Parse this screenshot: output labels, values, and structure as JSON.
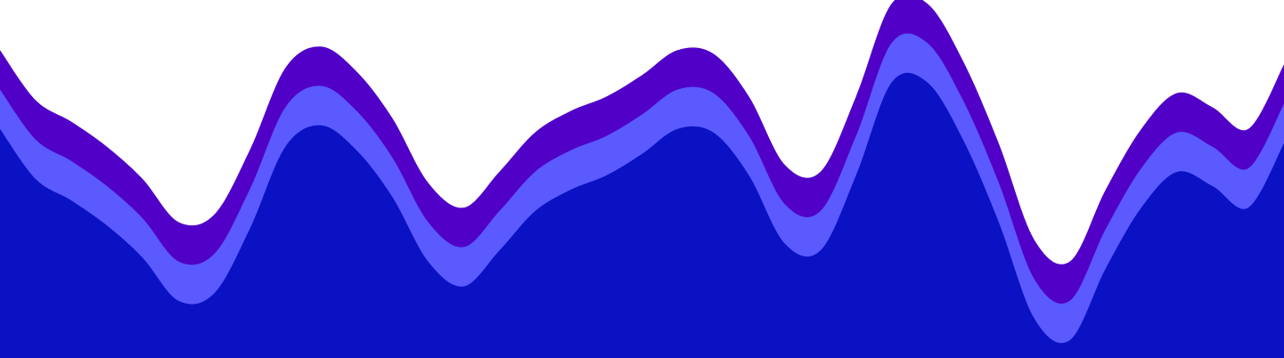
{
  "chart_data": {
    "type": "area",
    "stacked": true,
    "title": "",
    "xlabel": "",
    "ylabel": "",
    "grid": false,
    "legend": "none",
    "ylim": [
      0,
      100
    ],
    "x": [
      0,
      1,
      2,
      3,
      4,
      5,
      6,
      7,
      8,
      9,
      10,
      11,
      12,
      13,
      14,
      15,
      16,
      17,
      18,
      19,
      20,
      21,
      22,
      23,
      24,
      25,
      26,
      27,
      28,
      29,
      30,
      31,
      32,
      33,
      34,
      35,
      36
    ],
    "series": [
      {
        "color": "#0a12c4",
        "values": [
          64,
          50,
          44,
          37,
          28,
          16,
          18,
          36,
          59,
          65,
          58,
          45,
          27,
          20,
          30,
          41,
          47,
          51,
          57,
          64,
          63,
          51,
          32,
          30,
          51,
          77,
          77,
          61,
          38,
          11,
          5,
          25,
          42,
          52,
          48,
          42,
          60
        ]
      },
      {
        "color": "#5a5aff",
        "values": [
          11,
          11,
          11,
          11,
          11,
          11,
          11,
          11,
          11,
          11,
          11,
          11,
          11,
          11,
          11,
          11,
          11,
          11,
          11,
          11,
          11,
          11,
          11,
          11,
          11,
          11,
          11,
          11,
          11,
          11,
          11,
          11,
          11,
          11,
          11,
          11,
          11
        ]
      },
      {
        "color": "#5100c8",
        "values": [
          11,
          11,
          11,
          11,
          11,
          11,
          11,
          11,
          11,
          11,
          11,
          11,
          11,
          11,
          11,
          11,
          11,
          11,
          11,
          11,
          11,
          11,
          11,
          11,
          11,
          11,
          11,
          11,
          11,
          11,
          11,
          11,
          11,
          11,
          11,
          11,
          11
        ]
      }
    ]
  }
}
